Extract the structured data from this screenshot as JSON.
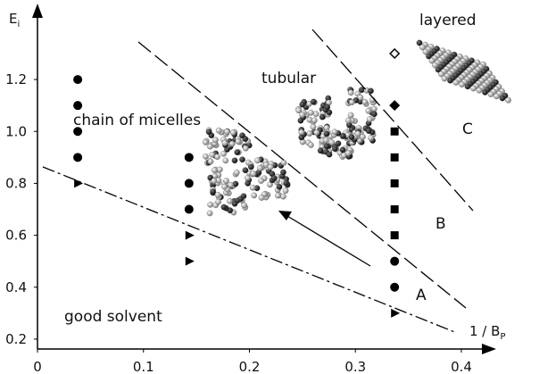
{
  "chart_data": {
    "type": "scatter",
    "ylabel": "E",
    "ylabel_sub": "i",
    "xlabel": "1 / B",
    "xlabel_sub": "P",
    "xlim": [
      0,
      0.432
    ],
    "ylim": [
      0.162,
      1.465
    ],
    "xticks": [
      0,
      0.1,
      0.2,
      0.3,
      0.4
    ],
    "yticks": [
      0.2,
      0.4,
      0.6,
      0.8,
      {
        "value": 1,
        "label": "1.0"
      },
      1.2
    ],
    "annotations": [
      "layered",
      "tubular",
      "chain of micelles",
      "good solvent",
      "A",
      "B",
      "C"
    ],
    "series": [
      {
        "marker": "circle",
        "color": "#000000",
        "x": [
          0.038,
          0.038,
          0.038,
          0.038,
          0.143,
          0.143,
          0.143,
          0.337,
          0.337
        ],
        "values": [
          1.2,
          1.1,
          1.0,
          0.9,
          0.9,
          0.8,
          0.7,
          0.5,
          0.4
        ]
      },
      {
        "marker": "triangle-right",
        "color": "#000000",
        "x": [
          0.038,
          0.143,
          0.143,
          0.337
        ],
        "values": [
          0.8,
          0.6,
          0.5,
          0.3
        ]
      },
      {
        "marker": "square",
        "color": "#000000",
        "x": [
          0.337,
          0.337,
          0.337,
          0.337,
          0.337
        ],
        "values": [
          1.0,
          0.9,
          0.8,
          0.7,
          0.6
        ]
      },
      {
        "marker": "diamond",
        "color": "#000000",
        "x": [
          0.337
        ],
        "values": [
          1.1
        ]
      },
      {
        "marker": "diamond-open",
        "color": "#000000",
        "x": [
          0.337
        ],
        "values": [
          1.3
        ]
      }
    ]
  }
}
